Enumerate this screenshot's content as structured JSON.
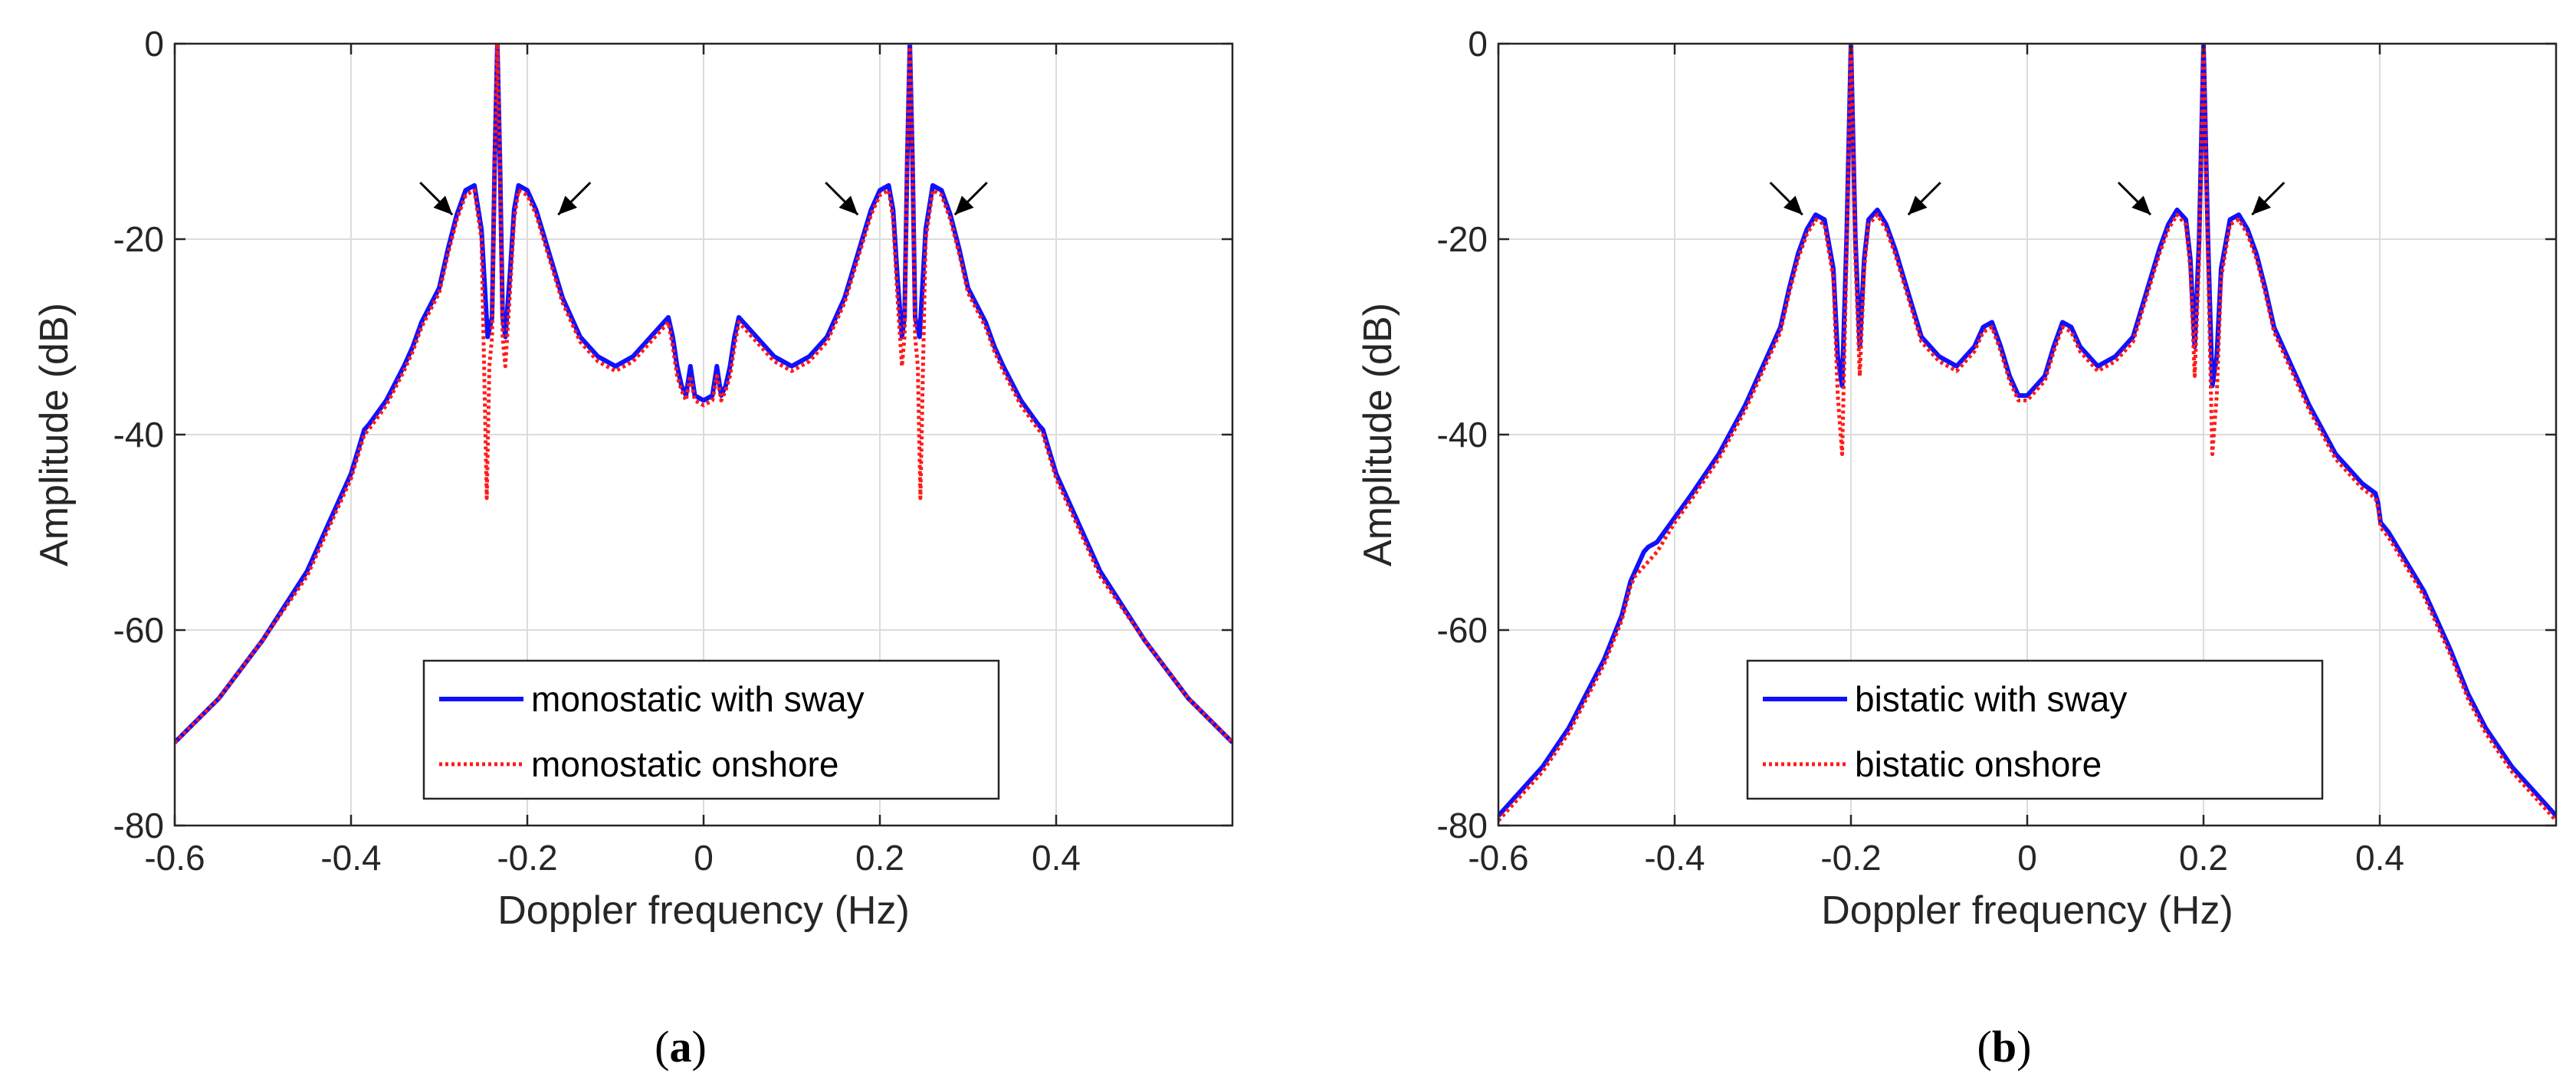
{
  "chart_data": [
    {
      "panel_label": "a",
      "type": "line",
      "xlabel": "Doppler frequency (Hz)",
      "ylabel": "Amplitude (dB)",
      "xlim": [
        -0.6,
        0.6
      ],
      "ylim": [
        -80,
        0
      ],
      "xticks": [
        -0.6,
        -0.4,
        -0.2,
        0,
        0.2,
        0.4
      ],
      "xtick_labels": [
        "-0.6",
        "-0.4",
        "-0.2",
        "0",
        "0.2",
        "0.4"
      ],
      "yticks": [
        0,
        -20,
        -40,
        -60,
        -80
      ],
      "ytick_labels": [
        "0",
        "-20",
        "-40",
        "-60",
        "-80"
      ],
      "grid": true,
      "legend_position": "bottom-center",
      "arrows_at": [
        -0.285,
        -0.165,
        0.175,
        0.285
      ],
      "series": [
        {
          "name": "monostatic with sway",
          "color": "#1010ff",
          "style": "solid",
          "x": [
            -0.6,
            -0.55,
            -0.5,
            -0.45,
            -0.42,
            -0.4,
            -0.39,
            -0.385,
            -0.38,
            -0.36,
            -0.34,
            -0.33,
            -0.32,
            -0.3,
            -0.29,
            -0.28,
            -0.27,
            -0.26,
            -0.252,
            -0.245,
            -0.24,
            -0.237,
            -0.234,
            -0.231,
            -0.228,
            -0.225,
            -0.22,
            -0.215,
            -0.21,
            -0.2,
            -0.19,
            -0.18,
            -0.17,
            -0.16,
            -0.14,
            -0.12,
            -0.1,
            -0.08,
            -0.06,
            -0.05,
            -0.04,
            -0.035,
            -0.03,
            -0.025,
            -0.02,
            -0.015,
            -0.01,
            0,
            0.01,
            0.015,
            0.02,
            0.025,
            0.03,
            0.035,
            0.04,
            0.05,
            0.06,
            0.08,
            0.1,
            0.12,
            0.14,
            0.16,
            0.17,
            0.18,
            0.19,
            0.2,
            0.21,
            0.215,
            0.22,
            0.225,
            0.228,
            0.231,
            0.234,
            0.237,
            0.24,
            0.245,
            0.252,
            0.26,
            0.27,
            0.28,
            0.29,
            0.3,
            0.32,
            0.33,
            0.34,
            0.36,
            0.38,
            0.385,
            0.39,
            0.4,
            0.42,
            0.45,
            0.5,
            0.55,
            0.6
          ],
          "y": [
            -71.5,
            -67,
            -61,
            -54,
            -48,
            -44,
            -41,
            -39.5,
            -39,
            -36.5,
            -33,
            -31,
            -28.5,
            -25,
            -21,
            -17.5,
            -15,
            -14.5,
            -19,
            -30,
            -28,
            -12,
            0,
            -12,
            -28,
            -30,
            -24,
            -17,
            -14.5,
            -15,
            -17,
            -20,
            -23,
            -26,
            -30,
            -32,
            -33,
            -32,
            -30,
            -29,
            -28,
            -30,
            -33,
            -35,
            -36,
            -33,
            -36,
            -36.5,
            -36,
            -33,
            -36,
            -35,
            -33,
            -30,
            -28,
            -29,
            -30,
            -32,
            -33,
            -32,
            -30,
            -26,
            -23,
            -20,
            -17,
            -15,
            -14.5,
            -17,
            -24,
            -30,
            -28,
            -12,
            0,
            -12,
            -28,
            -30,
            -19,
            -14.5,
            -15,
            -17.5,
            -21,
            -25,
            -28.5,
            -31,
            -33,
            -36.5,
            -39,
            -39.5,
            -41,
            -44,
            -48,
            -54,
            -61,
            -67,
            -71.5
          ]
        },
        {
          "name": "monostatic onshore",
          "color": "#ff1a1a",
          "style": "dotted",
          "x": [
            -0.6,
            -0.55,
            -0.5,
            -0.45,
            -0.42,
            -0.4,
            -0.39,
            -0.385,
            -0.38,
            -0.36,
            -0.34,
            -0.33,
            -0.32,
            -0.3,
            -0.29,
            -0.28,
            -0.27,
            -0.26,
            -0.252,
            -0.249,
            -0.246,
            -0.243,
            -0.24,
            -0.237,
            -0.234,
            -0.231,
            -0.228,
            -0.225,
            -0.22,
            -0.215,
            -0.21,
            -0.2,
            -0.19,
            -0.18,
            -0.17,
            -0.16,
            -0.14,
            -0.12,
            -0.1,
            -0.08,
            -0.06,
            -0.05,
            -0.04,
            -0.035,
            -0.03,
            -0.025,
            -0.02,
            -0.015,
            -0.01,
            0,
            0.01,
            0.015,
            0.02,
            0.025,
            0.03,
            0.035,
            0.04,
            0.05,
            0.06,
            0.08,
            0.1,
            0.12,
            0.14,
            0.16,
            0.17,
            0.18,
            0.19,
            0.2,
            0.21,
            0.215,
            0.22,
            0.225,
            0.228,
            0.231,
            0.234,
            0.237,
            0.24,
            0.243,
            0.246,
            0.249,
            0.252,
            0.26,
            0.27,
            0.28,
            0.29,
            0.3,
            0.32,
            0.33,
            0.34,
            0.36,
            0.38,
            0.385,
            0.39,
            0.4,
            0.42,
            0.45,
            0.5,
            0.55,
            0.6
          ],
          "y": [
            -71.5,
            -67,
            -61,
            -54.5,
            -48.5,
            -44.5,
            -41.5,
            -40,
            -39.5,
            -37,
            -33.5,
            -31.5,
            -29,
            -25.5,
            -21.5,
            -18,
            -15.5,
            -15,
            -20,
            -33,
            -46.5,
            -33,
            -30,
            -12,
            0,
            -12,
            -30,
            -33,
            -26,
            -18,
            -15,
            -15.5,
            -17.5,
            -20.5,
            -23.5,
            -26.5,
            -30.5,
            -32.5,
            -33.5,
            -32.5,
            -30.5,
            -29.5,
            -28.5,
            -31,
            -34,
            -35.5,
            -36.5,
            -34,
            -36.5,
            -37,
            -36.5,
            -34,
            -36.5,
            -35.5,
            -34,
            -31,
            -28.5,
            -29.5,
            -30.5,
            -32.5,
            -33.5,
            -32.5,
            -30.5,
            -26.5,
            -23.5,
            -20.5,
            -17.5,
            -15.5,
            -15,
            -18,
            -26,
            -33,
            -30,
            -12,
            0,
            -12,
            -30,
            -33,
            -46.5,
            -33,
            -20,
            -15,
            -15.5,
            -18,
            -21.5,
            -25.5,
            -29,
            -31.5,
            -33.5,
            -37,
            -39.5,
            -40,
            -41.5,
            -44.5,
            -48.5,
            -54.5,
            -61,
            -67,
            -71.5
          ]
        }
      ]
    },
    {
      "panel_label": "b",
      "type": "line",
      "xlabel": "Doppler frequency (Hz)",
      "ylabel": "Amplitude (dB)",
      "xlim": [
        -0.6,
        0.6
      ],
      "ylim": [
        -80,
        0
      ],
      "xticks": [
        -0.6,
        -0.4,
        -0.2,
        0,
        0.2,
        0.4
      ],
      "xtick_labels": [
        "-0.6",
        "-0.4",
        "-0.2",
        "0",
        "0.2",
        "0.4"
      ],
      "yticks": [
        0,
        -20,
        -40,
        -60,
        -80
      ],
      "ytick_labels": [
        "0",
        "-20",
        "-40",
        "-60",
        "-80"
      ],
      "grid": true,
      "legend_position": "bottom-center",
      "arrows_at": [
        -0.255,
        -0.135,
        0.14,
        0.255
      ],
      "series": [
        {
          "name": "bistatic with sway",
          "color": "#1010ff",
          "style": "solid",
          "x": [
            -0.6,
            -0.58,
            -0.55,
            -0.52,
            -0.5,
            -0.48,
            -0.46,
            -0.45,
            -0.445,
            -0.44,
            -0.435,
            -0.43,
            -0.42,
            -0.4,
            -0.38,
            -0.35,
            -0.32,
            -0.3,
            -0.28,
            -0.27,
            -0.26,
            -0.25,
            -0.24,
            -0.23,
            -0.22,
            -0.215,
            -0.21,
            -0.205,
            -0.2,
            -0.195,
            -0.19,
            -0.185,
            -0.18,
            -0.17,
            -0.16,
            -0.15,
            -0.14,
            -0.13,
            -0.12,
            -0.1,
            -0.08,
            -0.06,
            -0.05,
            -0.04,
            -0.03,
            -0.02,
            -0.01,
            0,
            0.01,
            0.02,
            0.03,
            0.04,
            0.05,
            0.06,
            0.08,
            0.1,
            0.12,
            0.13,
            0.14,
            0.15,
            0.16,
            0.17,
            0.18,
            0.185,
            0.19,
            0.195,
            0.2,
            0.205,
            0.21,
            0.215,
            0.22,
            0.23,
            0.24,
            0.25,
            0.26,
            0.27,
            0.28,
            0.3,
            0.32,
            0.35,
            0.38,
            0.395,
            0.398,
            0.401,
            0.41,
            0.43,
            0.45,
            0.46,
            0.48,
            0.5,
            0.52,
            0.55,
            0.58,
            0.6
          ],
          "y": [
            -79,
            -77,
            -74,
            -70,
            -66.5,
            -63,
            -58.5,
            -55,
            -54,
            -53,
            -52,
            -51.5,
            -51,
            -48.5,
            -46,
            -42,
            -37,
            -33,
            -29,
            -25,
            -21.5,
            -19,
            -17.5,
            -18,
            -23,
            -32,
            -35,
            -20,
            0,
            -20,
            -31,
            -22,
            -18,
            -17,
            -18.5,
            -21,
            -24,
            -27,
            -30,
            -32,
            -33,
            -31,
            -29,
            -28.5,
            -31,
            -34,
            -36,
            -36,
            -35,
            -34,
            -31,
            -28.5,
            -29,
            -31,
            -33,
            -32,
            -30,
            -27,
            -24,
            -21,
            -18.5,
            -17,
            -18,
            -22,
            -31,
            -20,
            0,
            -20,
            -35,
            -32,
            -23,
            -18,
            -17.5,
            -19,
            -21.5,
            -25,
            -29,
            -33,
            -37,
            -42,
            -45,
            -46,
            -47,
            -49,
            -50,
            -53,
            -56,
            -58,
            -62,
            -66.5,
            -70,
            -74,
            -77,
            -79
          ]
        },
        {
          "name": "bistatic onshore",
          "color": "#ff1a1a",
          "style": "dotted",
          "x": [
            -0.6,
            -0.58,
            -0.55,
            -0.52,
            -0.5,
            -0.48,
            -0.46,
            -0.45,
            -0.445,
            -0.44,
            -0.435,
            -0.43,
            -0.42,
            -0.4,
            -0.38,
            -0.35,
            -0.32,
            -0.3,
            -0.28,
            -0.27,
            -0.26,
            -0.25,
            -0.24,
            -0.23,
            -0.22,
            -0.215,
            -0.21,
            -0.205,
            -0.2,
            -0.195,
            -0.19,
            -0.185,
            -0.18,
            -0.17,
            -0.16,
            -0.15,
            -0.14,
            -0.13,
            -0.12,
            -0.1,
            -0.08,
            -0.06,
            -0.05,
            -0.04,
            -0.03,
            -0.02,
            -0.01,
            0,
            0.01,
            0.02,
            0.03,
            0.04,
            0.05,
            0.06,
            0.08,
            0.1,
            0.12,
            0.13,
            0.14,
            0.15,
            0.16,
            0.17,
            0.18,
            0.185,
            0.19,
            0.195,
            0.2,
            0.205,
            0.21,
            0.215,
            0.22,
            0.23,
            0.24,
            0.25,
            0.26,
            0.27,
            0.28,
            0.3,
            0.32,
            0.35,
            0.38,
            0.395,
            0.398,
            0.401,
            0.41,
            0.43,
            0.45,
            0.46,
            0.48,
            0.5,
            0.52,
            0.55,
            0.58,
            0.6
          ],
          "y": [
            -79.5,
            -77.5,
            -74.5,
            -70.5,
            -67,
            -63.5,
            -59,
            -55.5,
            -54.5,
            -54,
            -53.5,
            -53,
            -52,
            -49,
            -46.5,
            -42.5,
            -37.5,
            -33.5,
            -29.5,
            -25.5,
            -22,
            -19.5,
            -18,
            -18.5,
            -24,
            -36,
            -42,
            -22,
            0,
            -22,
            -34,
            -23,
            -18.5,
            -17.5,
            -19,
            -21.5,
            -24.5,
            -27.5,
            -30.5,
            -32.5,
            -33.5,
            -31.5,
            -29.5,
            -29,
            -31.5,
            -34.5,
            -36.5,
            -36.5,
            -35.5,
            -34.5,
            -31.5,
            -29,
            -29.5,
            -31.5,
            -33.5,
            -32.5,
            -30.5,
            -27.5,
            -24.5,
            -21.5,
            -19,
            -17.5,
            -18.5,
            -23,
            -34,
            -22,
            0,
            -22,
            -42,
            -36,
            -24,
            -18.5,
            -18,
            -19.5,
            -22,
            -25.5,
            -29.5,
            -33.5,
            -37.5,
            -42.5,
            -45.5,
            -46.5,
            -47.5,
            -49.5,
            -50.5,
            -53.5,
            -56.5,
            -58.5,
            -62.5,
            -67,
            -70.5,
            -74.5,
            -77.5,
            -79.5
          ]
        }
      ]
    }
  ]
}
